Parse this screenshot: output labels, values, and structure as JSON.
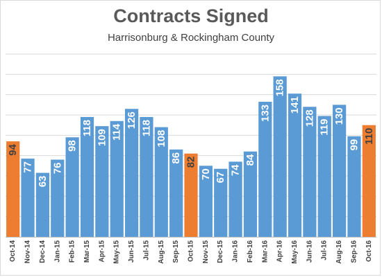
{
  "chart_data": {
    "type": "bar",
    "title": "Contracts Signed",
    "subtitle": "Harrisonburg & Rockingham County",
    "xlabel": "",
    "ylabel": "",
    "ylim": [
      0,
      180
    ],
    "grid": true,
    "categories": [
      "Oct-14",
      "Nov-14",
      "Dec-14",
      "Jan-15",
      "Feb-15",
      "Mar-15",
      "Apr-15",
      "May-15",
      "Jun-15",
      "Jul-15",
      "Aug-15",
      "Sep-15",
      "Oct-15",
      "Nov-15",
      "Dec-15",
      "Jan-16",
      "Feb-16",
      "Mar-16",
      "Apr-16",
      "May-16",
      "Jun-16",
      "Jul-16",
      "Aug-16",
      "Sep-16",
      "Oct-16"
    ],
    "values": [
      94,
      77,
      63,
      76,
      98,
      118,
      109,
      114,
      126,
      118,
      108,
      86,
      82,
      70,
      67,
      74,
      84,
      133,
      158,
      141,
      128,
      119,
      130,
      99,
      110
    ],
    "highlighted": [
      "Oct-14",
      "Oct-15",
      "Oct-16"
    ],
    "colors": {
      "bar": "#5b9bd5",
      "highlight": "#ed7d31",
      "grid": "#d9d9d9",
      "label_on_blue": "#ffffff",
      "label_on_orange": "#404040"
    }
  }
}
